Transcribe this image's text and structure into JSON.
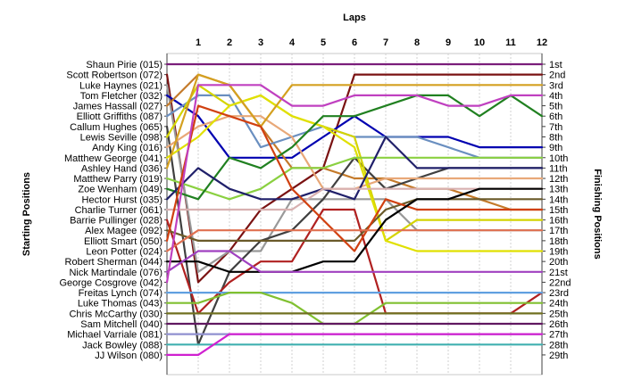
{
  "chart_data": {
    "type": "line",
    "title": "",
    "xlabel": "Laps",
    "ylabel_left": "Starting Positions",
    "ylabel_right": "Finishing Positions",
    "laps": [
      1,
      2,
      3,
      4,
      5,
      6,
      7,
      8,
      9,
      10,
      11,
      12
    ],
    "xlim": [
      0,
      12
    ],
    "positions": 29,
    "finishing_labels": [
      "1st",
      "2nd",
      "3rd",
      "4th",
      "5th",
      "6th",
      "7th",
      "8th",
      "9th",
      "10th",
      "11th",
      "12th",
      "13th",
      "14th",
      "15th",
      "16th",
      "17th",
      "18th",
      "19th",
      "20th",
      "21st",
      "22nd",
      "23rd",
      "24th",
      "25th",
      "26th",
      "27th",
      "28th",
      "29th"
    ],
    "series": [
      {
        "name": "Shaun Pirie (015)",
        "color": "#7a1e7a",
        "values": [
          1,
          1,
          1,
          1,
          1,
          1,
          1,
          1,
          1,
          1,
          1,
          1,
          1
        ]
      },
      {
        "name": "Scott Robertson (072)",
        "color": "#7a1212",
        "values": [
          2,
          22,
          19,
          15,
          13,
          11,
          2,
          2,
          2,
          2,
          2,
          2,
          2
        ]
      },
      {
        "name": "Luke Haynes (021)",
        "color": "#999999",
        "values": [
          3,
          21,
          19,
          19,
          14,
          14,
          14,
          14,
          17,
          17,
          17,
          17,
          17
        ]
      },
      {
        "name": "Tom Fletcher (032)",
        "color": "#0000b0",
        "values": [
          4,
          6,
          10,
          10,
          10,
          8,
          6,
          8,
          8,
          8,
          9,
          9,
          9
        ]
      },
      {
        "name": "James Hassall (027)",
        "color": "#c47a2a",
        "values": [
          5,
          2,
          3,
          7,
          11,
          11,
          12,
          12,
          13,
          13,
          14,
          15,
          15
        ]
      },
      {
        "name": "Elliott Griffiths (087)",
        "color": "#6a8fc0",
        "values": [
          6,
          4,
          4,
          9,
          8,
          7,
          8,
          8,
          8,
          9,
          10,
          10,
          10
        ]
      },
      {
        "name": "Callum Hughes (065)",
        "color": "#404040",
        "values": [
          7,
          28,
          21,
          18,
          17,
          14,
          10,
          13,
          12,
          11,
          11,
          11,
          11
        ]
      },
      {
        "name": "Lewis Seville (098)",
        "color": "#d4d400",
        "values": [
          8,
          3,
          5,
          4,
          6,
          7,
          8,
          18,
          16,
          16,
          16,
          16,
          16
        ]
      },
      {
        "name": "Andy King (016)",
        "color": "#e8a878",
        "values": [
          9,
          7,
          6,
          6,
          8,
          13,
          13,
          12,
          12,
          12,
          12,
          12,
          12
        ]
      },
      {
        "name": "Matthew George (041)",
        "color": "#e0e000",
        "values": [
          10,
          8,
          5,
          4,
          6,
          7,
          9,
          18,
          19,
          19,
          19,
          19,
          19
        ]
      },
      {
        "name": "Ashley Hand (036)",
        "color": "#d4a020",
        "values": [
          11,
          2,
          3,
          7,
          3,
          3,
          3,
          3,
          3,
          3,
          3,
          3,
          3
        ]
      },
      {
        "name": "Matthew Parry (019)",
        "color": "#8ad040",
        "values": [
          12,
          13,
          14,
          13,
          11,
          11,
          10,
          10,
          10,
          10,
          10,
          10,
          10
        ]
      },
      {
        "name": "Zoe Wenham (049)",
        "color": "#208020",
        "values": [
          13,
          14,
          10,
          11,
          9,
          6,
          6,
          5,
          4,
          4,
          6,
          4,
          6
        ]
      },
      {
        "name": "Hector Hurst (035)",
        "color": "#20206a",
        "values": [
          14,
          11,
          13,
          14,
          14,
          13,
          14,
          8,
          11,
          11,
          11,
          11,
          11
        ]
      },
      {
        "name": "Charlie Turner (061)",
        "color": "#d8b0b0",
        "values": [
          15,
          15,
          15,
          15,
          15,
          13,
          13,
          13,
          13,
          13,
          13,
          13,
          13
        ]
      },
      {
        "name": "Barrie Pullinger (028)",
        "color": "#b02020",
        "values": [
          16,
          25,
          22,
          20,
          20,
          15,
          15,
          25,
          25,
          25,
          25,
          25,
          23
        ]
      },
      {
        "name": "Alex Magee (092)",
        "color": "#6a5a2a",
        "values": [
          17,
          18,
          18,
          18,
          18,
          18,
          18,
          15,
          14,
          14,
          14,
          14,
          14
        ]
      },
      {
        "name": "Elliott Smart (050)",
        "color": "#d04010",
        "values": [
          18,
          5,
          6,
          7,
          13,
          16,
          19,
          14,
          15,
          15,
          15,
          15,
          15
        ]
      },
      {
        "name": "Leon Potter (024)",
        "color": "#e07050",
        "values": [
          19,
          17,
          17,
          17,
          17,
          17,
          17,
          17,
          17,
          17,
          17,
          17,
          17
        ]
      },
      {
        "name": "Robert Sherman (044)",
        "color": "#000000",
        "values": [
          20,
          20,
          21,
          21,
          21,
          20,
          20,
          16,
          14,
          14,
          13,
          13,
          13
        ]
      },
      {
        "name": "Nick Martindale (076)",
        "color": "#a040c0",
        "values": [
          21,
          19,
          19,
          21,
          21,
          21,
          21,
          21,
          21,
          21,
          21,
          21,
          21
        ]
      },
      {
        "name": "George Cosgrove (042)",
        "color": "#c040c0",
        "values": [
          22,
          3,
          3,
          3,
          5,
          5,
          4,
          4,
          4,
          5,
          5,
          4,
          4
        ]
      },
      {
        "name": "Freitas Lynch (074)",
        "color": "#60a0e0",
        "values": [
          23,
          23,
          23,
          23,
          23,
          23,
          23,
          23,
          23,
          23,
          23,
          23,
          23
        ]
      },
      {
        "name": "Luke Thomas (043)",
        "color": "#80c030",
        "values": [
          24,
          24,
          23,
          23,
          24,
          26,
          26,
          24,
          24,
          24,
          24,
          24,
          24
        ]
      },
      {
        "name": "Chris McCarthy (030)",
        "color": "#707020",
        "values": [
          25,
          25,
          25,
          25,
          25,
          25,
          25,
          25,
          25,
          25,
          25,
          25,
          25
        ]
      },
      {
        "name": "Sam Mitchell (040)",
        "color": "#601860",
        "values": [
          26,
          26,
          26,
          26,
          26,
          26,
          26,
          26,
          26,
          26,
          26,
          26,
          26
        ]
      },
      {
        "name": "Michael Varriale (081)",
        "color": "#9090d0",
        "values": [
          27,
          27,
          27,
          27,
          27,
          27,
          27,
          27,
          27,
          27,
          27,
          27,
          27
        ]
      },
      {
        "name": "Jack Bowley (088)",
        "color": "#40b0b0",
        "values": [
          28,
          28,
          28,
          28,
          28,
          28,
          28,
          28,
          28,
          28,
          28,
          28,
          28
        ]
      },
      {
        "name": "JJ Wilson (080)",
        "color": "#d020d0",
        "values": [
          29,
          29,
          27,
          27,
          27,
          27,
          27,
          27,
          27,
          27,
          27,
          27,
          27
        ]
      }
    ]
  }
}
